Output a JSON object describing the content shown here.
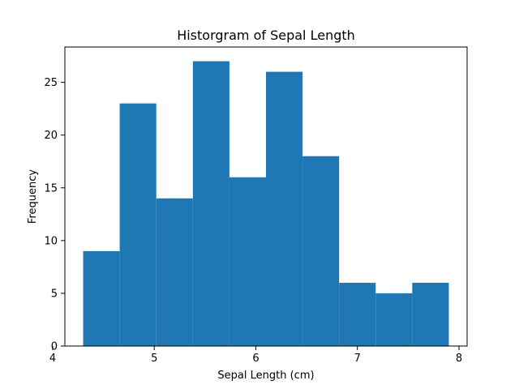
{
  "chart_data": {
    "type": "bar",
    "title": "Historgram of Sepal Length",
    "xlabel": "Sepal Length (cm)",
    "ylabel": "Frequency",
    "bin_edges": [
      4.3,
      4.66,
      5.02,
      5.38,
      5.74,
      6.1,
      6.46,
      6.82,
      7.18,
      7.54,
      7.9
    ],
    "values": [
      9,
      23,
      14,
      27,
      16,
      26,
      18,
      6,
      5,
      6
    ],
    "xlim": [
      4.12,
      8.08
    ],
    "ylim": [
      0,
      28.35
    ],
    "xticks": [
      4,
      5,
      6,
      7,
      8
    ],
    "yticks": [
      0,
      5,
      10,
      15,
      20,
      25
    ],
    "bar_color": "#1f77b4",
    "grid": false,
    "legend": false
  }
}
